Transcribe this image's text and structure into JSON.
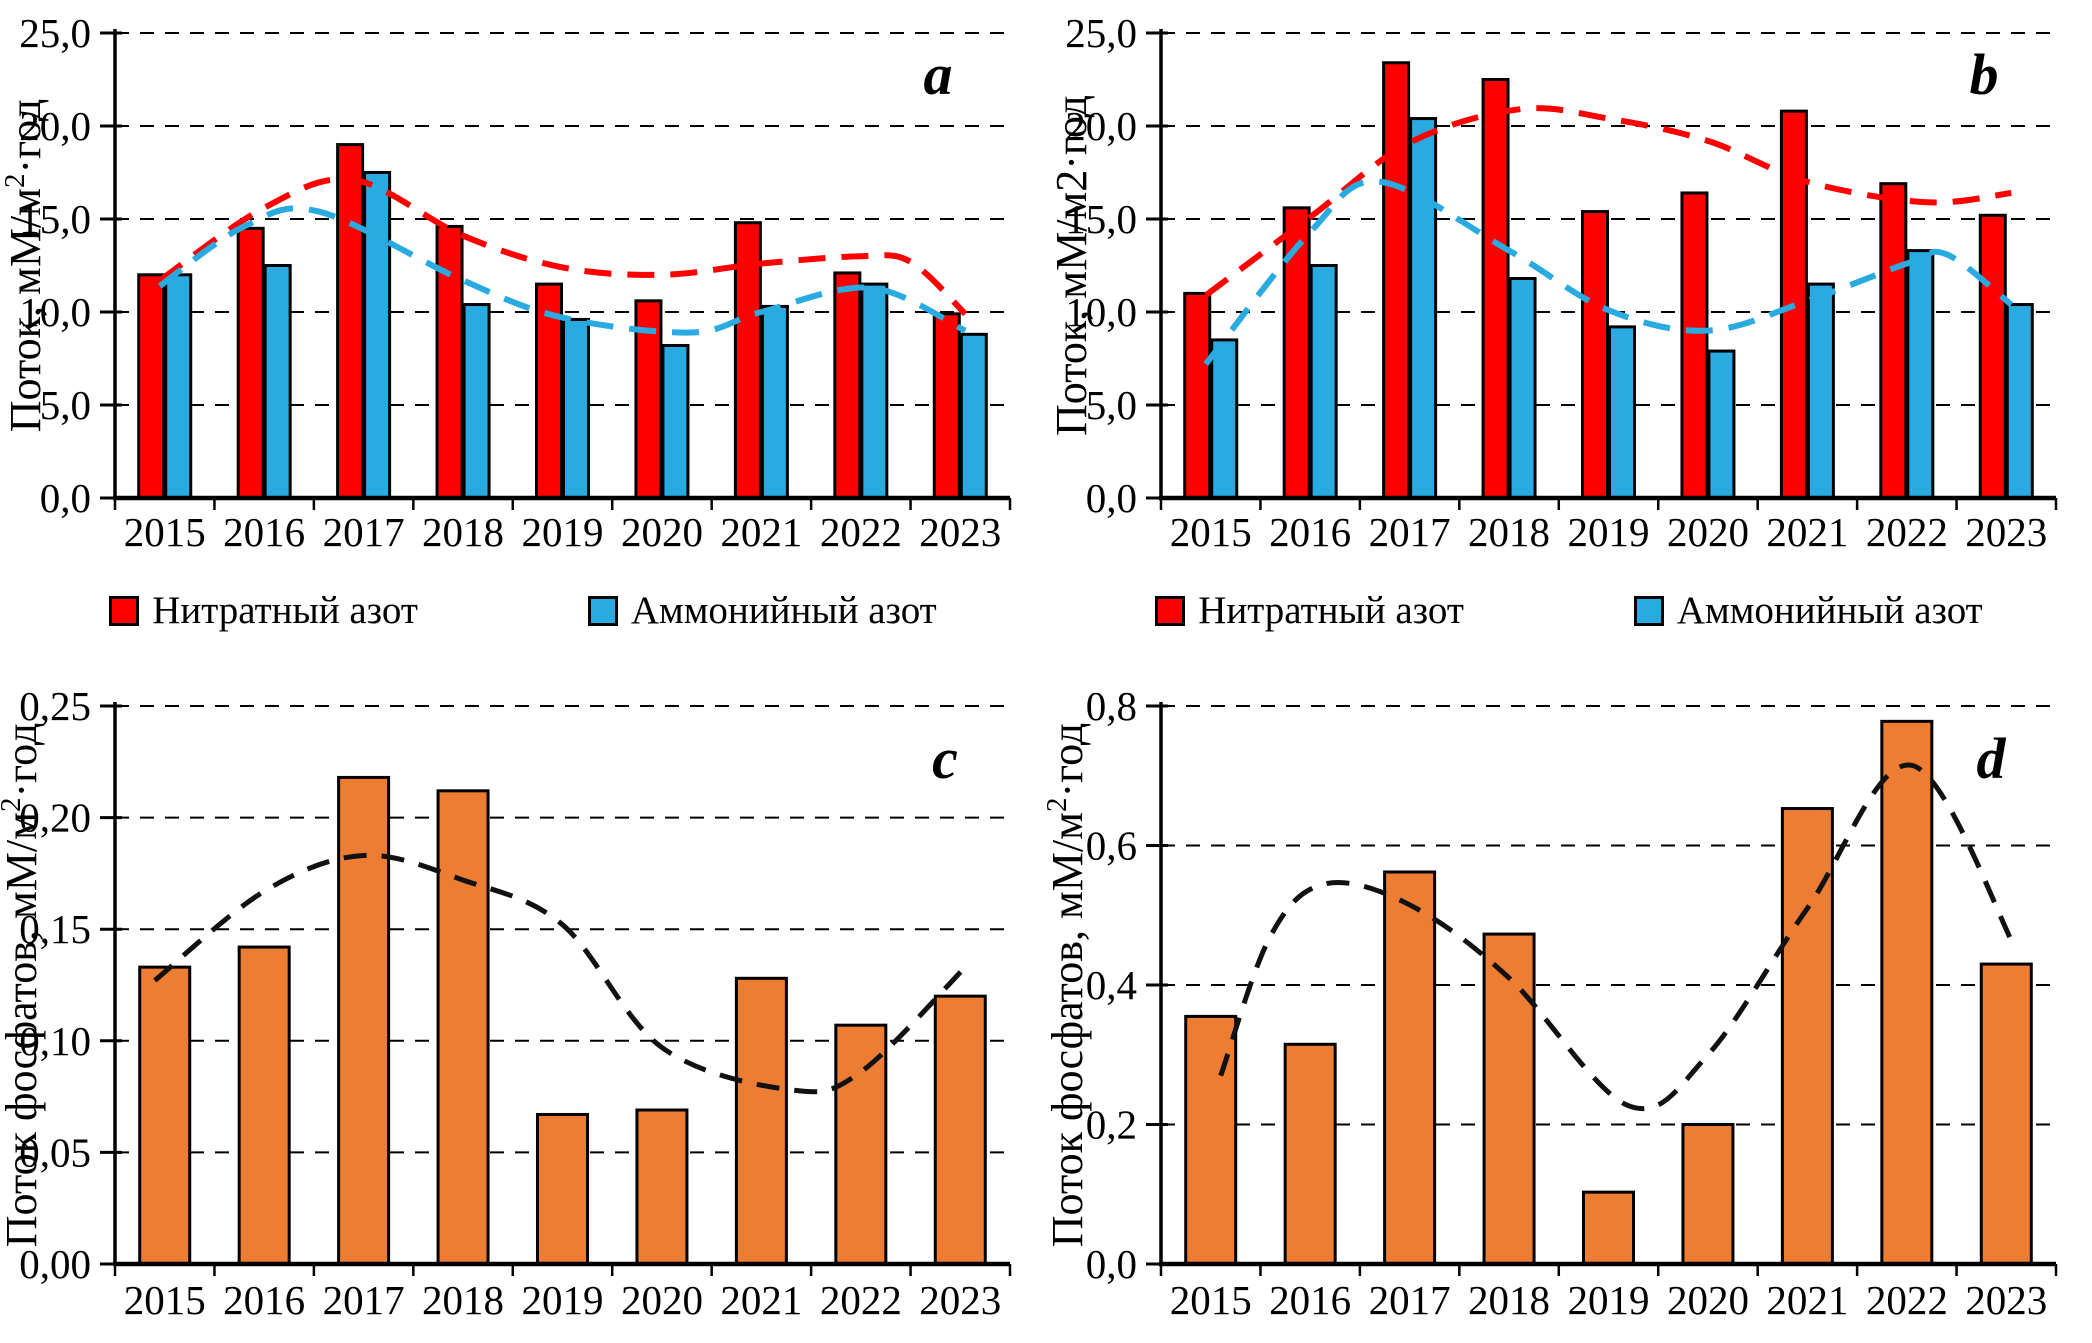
{
  "page": {
    "background": "#ffffff"
  },
  "chart_data": [
    {
      "id": "a",
      "row": "top",
      "type": "bar",
      "panel_label": "a",
      "ylabel_parts": [
        {
          "t": "Поток, мМ/м"
        },
        {
          "t": "2",
          "sup": true
        },
        {
          "t": "·год"
        }
      ],
      "ylim": [
        0,
        25
      ],
      "grid": true,
      "legend_position": "bottom",
      "yticks": [
        {
          "v": 0,
          "label": "0,0"
        },
        {
          "v": 5,
          "label": "5,0"
        },
        {
          "v": 10,
          "label": "10,0"
        },
        {
          "v": 15,
          "label": "15,0"
        },
        {
          "v": 20,
          "label": "20,0"
        },
        {
          "v": 25,
          "label": "25,0"
        }
      ],
      "categories": [
        "2015",
        "2016",
        "2017",
        "2018",
        "2019",
        "2020",
        "2021",
        "2022",
        "2023"
      ],
      "series": [
        {
          "key": "nitrate",
          "name": "Нитратный азот",
          "color": "#FE0000",
          "values": [
            12.0,
            14.5,
            19.0,
            14.6,
            11.5,
            10.6,
            14.8,
            12.1,
            9.9
          ]
        },
        {
          "key": "ammonium",
          "name": "Аммонийный азот",
          "color": "#29ABE2",
          "values": [
            12.0,
            12.5,
            17.5,
            10.4,
            9.6,
            8.2,
            10.3,
            11.5,
            8.8
          ]
        }
      ],
      "trends": [
        {
          "key": "nitrate-trend",
          "color": "#FE0000",
          "points": [
            [
              -0.05,
              11.7
            ],
            [
              1,
              15.6
            ],
            [
              1.9,
              17.1
            ],
            [
              3,
              14.1
            ],
            [
              4,
              12.4
            ],
            [
              5,
              12.0
            ],
            [
              6,
              12.6
            ],
            [
              7,
              13.0
            ],
            [
              7.5,
              12.7
            ],
            [
              8.05,
              9.9
            ]
          ]
        },
        {
          "key": "ammonium-trend",
          "color": "#29ABE2",
          "points": [
            [
              -0.05,
              11.4
            ],
            [
              0.8,
              14.6
            ],
            [
              1.55,
              15.4
            ],
            [
              3,
              11.7
            ],
            [
              4,
              9.7
            ],
            [
              5.3,
              8.9
            ],
            [
              6,
              10.0
            ],
            [
              7.1,
              11.3
            ],
            [
              8.05,
              9.0
            ]
          ]
        }
      ]
    },
    {
      "id": "b",
      "row": "top",
      "type": "bar",
      "panel_label": "b",
      "ylabel_parts": [
        {
          "t": "Поток, мМ/м2·год"
        }
      ],
      "ylim": [
        0,
        25
      ],
      "grid": true,
      "legend_position": "bottom",
      "yticks": [
        {
          "v": 0,
          "label": "0,0"
        },
        {
          "v": 5,
          "label": "5,0"
        },
        {
          "v": 10,
          "label": "10,0"
        },
        {
          "v": 15,
          "label": "15,0"
        },
        {
          "v": 20,
          "label": "20,0"
        },
        {
          "v": 25,
          "label": "25,0"
        }
      ],
      "categories": [
        "2015",
        "2016",
        "2017",
        "2018",
        "2019",
        "2020",
        "2021",
        "2022",
        "2023"
      ],
      "series": [
        {
          "key": "nitrate",
          "name": "Нитратный азот",
          "color": "#FE0000",
          "values": [
            11.0,
            15.6,
            23.4,
            22.5,
            15.4,
            16.4,
            20.8,
            16.9,
            15.2
          ]
        },
        {
          "key": "ammonium",
          "name": "Аммонийный азот",
          "color": "#29ABE2",
          "values": [
            8.5,
            12.5,
            20.4,
            11.8,
            9.2,
            7.9,
            11.5,
            13.3,
            10.4
          ]
        }
      ],
      "trends": [
        {
          "key": "nitrate-trend",
          "color": "#FE0000",
          "points": [
            [
              -0.05,
              10.9
            ],
            [
              1,
              15.1
            ],
            [
              2,
              19.1
            ],
            [
              3.1,
              20.9
            ],
            [
              4,
              20.4
            ],
            [
              5,
              19.2
            ],
            [
              6,
              17.0
            ],
            [
              7.2,
              15.9
            ],
            [
              8.05,
              16.4
            ]
          ]
        },
        {
          "key": "ammonium-trend",
          "color": "#29ABE2",
          "points": [
            [
              -0.05,
              7.2
            ],
            [
              1,
              14.3
            ],
            [
              1.7,
              17.0
            ],
            [
              3,
              13.3
            ],
            [
              4,
              10.1
            ],
            [
              5,
              9.0
            ],
            [
              6,
              10.6
            ],
            [
              7,
              12.6
            ],
            [
              7.4,
              13.1
            ],
            [
              8.05,
              10.4
            ]
          ]
        }
      ]
    },
    {
      "id": "c",
      "row": "bottom",
      "type": "bar",
      "panel_label": "c",
      "ylabel_parts": [
        {
          "t": "Поток фосфатов, мМ/м"
        },
        {
          "t": "2",
          "sup": true
        },
        {
          "t": "·год"
        }
      ],
      "ylim": [
        0,
        0.25
      ],
      "grid": true,
      "legend_position": "none",
      "yticks": [
        {
          "v": 0,
          "label": "0,00"
        },
        {
          "v": 0.05,
          "label": "0,05"
        },
        {
          "v": 0.1,
          "label": "0,10"
        },
        {
          "v": 0.15,
          "label": "0,15"
        },
        {
          "v": 0.2,
          "label": "0,20"
        },
        {
          "v": 0.25,
          "label": "0,25"
        }
      ],
      "categories": [
        "2015",
        "2016",
        "2017",
        "2018",
        "2019",
        "2020",
        "2021",
        "2022",
        "2023"
      ],
      "series": [
        {
          "key": "phosphate",
          "name": "Поток фосфатов",
          "color": "#EC7D33",
          "values": [
            0.133,
            0.142,
            0.218,
            0.212,
            0.067,
            0.069,
            0.128,
            0.107,
            0.12
          ]
        }
      ],
      "trends": [
        {
          "key": "phosphate-trend",
          "color": "#111111",
          "points": [
            [
              -0.1,
              0.127
            ],
            [
              1,
              0.167
            ],
            [
              2,
              0.183
            ],
            [
              3,
              0.172
            ],
            [
              4,
              0.152
            ],
            [
              5,
              0.097
            ],
            [
              6.3,
              0.078
            ],
            [
              7,
              0.086
            ],
            [
              8.05,
              0.133
            ]
          ]
        }
      ]
    },
    {
      "id": "d",
      "row": "bottom",
      "type": "bar",
      "panel_label": "d",
      "ylabel_parts": [
        {
          "t": "Поток фосфатов, мМ/м"
        },
        {
          "t": "2",
          "sup": true
        },
        {
          "t": "·год"
        }
      ],
      "ylim": [
        0,
        0.8
      ],
      "grid": true,
      "legend_position": "none",
      "yticks": [
        {
          "v": 0,
          "label": "0,0"
        },
        {
          "v": 0.2,
          "label": "0,2"
        },
        {
          "v": 0.4,
          "label": "0,4"
        },
        {
          "v": 0.6,
          "label": "0,6"
        },
        {
          "v": 0.8,
          "label": "0,8"
        }
      ],
      "categories": [
        "2015",
        "2016",
        "2017",
        "2018",
        "2019",
        "2020",
        "2021",
        "2022",
        "2023"
      ],
      "series": [
        {
          "key": "phosphate",
          "name": "Поток фосфатов",
          "color": "#EC7D33",
          "values": [
            0.355,
            0.315,
            0.562,
            0.473,
            0.103,
            0.2,
            0.653,
            0.778,
            0.43
          ]
        }
      ],
      "trends": [
        {
          "key": "phosphate-trend",
          "color": "#111111",
          "points": [
            [
              0.1,
              0.27
            ],
            [
              0.6,
              0.47
            ],
            [
              1.15,
              0.545
            ],
            [
              2,
              0.515
            ],
            [
              3,
              0.41
            ],
            [
              4.2,
              0.227
            ],
            [
              5,
              0.3
            ],
            [
              6,
              0.51
            ],
            [
              7.05,
              0.715
            ],
            [
              8.1,
              0.45
            ]
          ]
        }
      ]
    }
  ]
}
